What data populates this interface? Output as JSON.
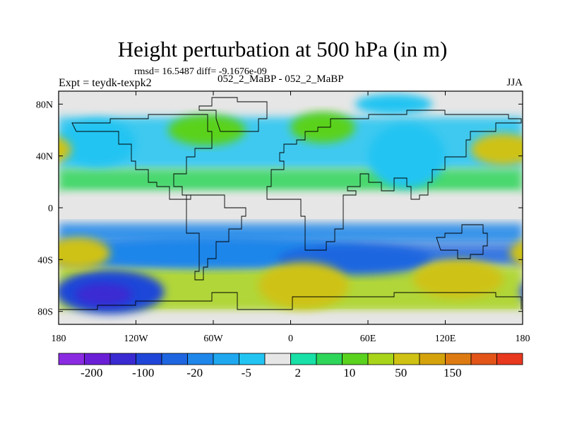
{
  "title": "Height perturbation at 500 hPa (in m)",
  "stats": "rmsd= 16.5487 diff= -9.1676e-09",
  "experiment": "Expt = teydk-texpk2",
  "subtitle": "052_2_MaBP - 052_2_MaBP",
  "season": "JJA",
  "chart_data": {
    "type": "heatmap",
    "title": "Height perturbation at 500 hPa (in m)",
    "x_ticks": [
      {
        "value": -180,
        "label": "180"
      },
      {
        "value": -120,
        "label": "120W"
      },
      {
        "value": -60,
        "label": "60W"
      },
      {
        "value": 0,
        "label": "0"
      },
      {
        "value": 60,
        "label": "60E"
      },
      {
        "value": 120,
        "label": "120E"
      },
      {
        "value": 180,
        "label": "180"
      }
    ],
    "y_ticks": [
      {
        "value": 80,
        "label": "80N"
      },
      {
        "value": 40,
        "label": "40N"
      },
      {
        "value": 0,
        "label": "0"
      },
      {
        "value": -40,
        "label": "40S"
      },
      {
        "value": -80,
        "label": "80S"
      }
    ],
    "xlim": [
      -180,
      180
    ],
    "ylim": [
      -90,
      90
    ],
    "colorbar": {
      "colors": [
        "#8a2be2",
        "#6a1fd6",
        "#3a2ad2",
        "#1f46d8",
        "#1e66e0",
        "#1f86ea",
        "#1fa8ef",
        "#22c4f2",
        "#e6e6e6",
        "#18e0a6",
        "#2ed65a",
        "#5ad21e",
        "#a8d41a",
        "#cfc214",
        "#d4a30c",
        "#dd7b12",
        "#e25418",
        "#e8381e"
      ],
      "labels": [
        "-200",
        "-100",
        "-20",
        "-5",
        "2",
        "10",
        "50",
        "150"
      ]
    },
    "regions": [
      {
        "name": "nh-central-pacific-low",
        "lon": -150,
        "lat": 50,
        "rx": 30,
        "ry": 18,
        "level": -5
      },
      {
        "name": "south-pacific-low",
        "lon": -140,
        "lat": -65,
        "rx": 42,
        "ry": 17,
        "level": -100
      },
      {
        "name": "south-pacific-low-core",
        "lon": -145,
        "lat": -67,
        "rx": 22,
        "ry": 9,
        "level": -150
      },
      {
        "name": "tropical-pacific-south-low",
        "lon": -60,
        "lat": -35,
        "rx": 120,
        "ry": 12,
        "level": -20
      },
      {
        "name": "indian-ocean-low",
        "lon": 50,
        "lat": -40,
        "rx": 60,
        "ry": 12,
        "level": -35
      },
      {
        "name": "atlantic-high",
        "lon": 10,
        "lat": -60,
        "rx": 35,
        "ry": 18,
        "level": 50
      },
      {
        "name": "west-pacific-high",
        "lon": 130,
        "lat": -55,
        "rx": 35,
        "ry": 15,
        "level": 50
      },
      {
        "name": "east-pacific-high",
        "lon": -165,
        "lat": -35,
        "rx": 25,
        "ry": 12,
        "level": 50
      },
      {
        "name": "asia-low",
        "lon": 90,
        "lat": 40,
        "rx": 30,
        "ry": 25,
        "level": -5
      },
      {
        "name": "north-atlantic-high",
        "lon": -65,
        "lat": 60,
        "rx": 30,
        "ry": 12,
        "level": 10
      },
      {
        "name": "europe-high",
        "lon": 25,
        "lat": 62,
        "rx": 25,
        "ry": 12,
        "level": 10
      },
      {
        "name": "nh-pacific-high",
        "lon": 165,
        "lat": 45,
        "rx": 25,
        "ry": 12,
        "level": 50
      },
      {
        "name": "arctic-low",
        "lon": 80,
        "lat": 80,
        "rx": 30,
        "ry": 8,
        "level": -5
      }
    ]
  }
}
